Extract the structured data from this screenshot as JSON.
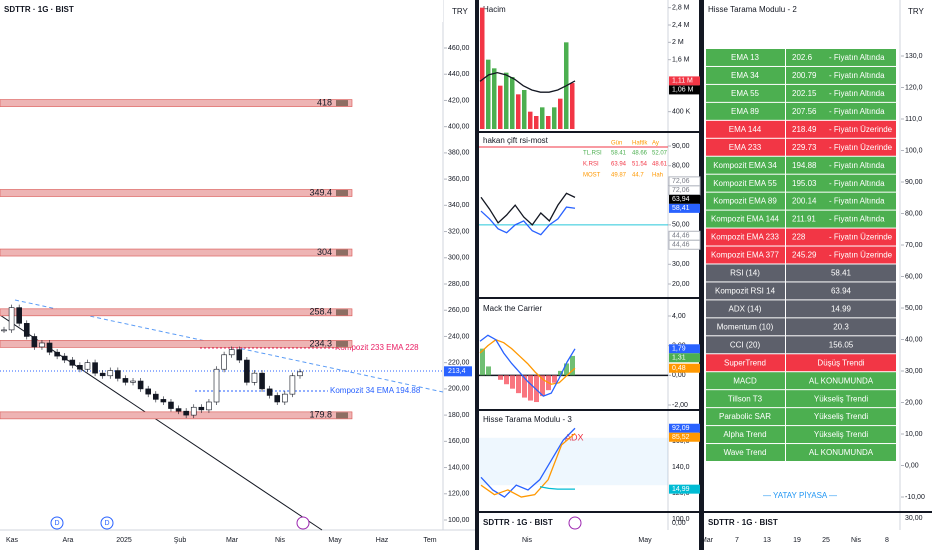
{
  "main": {
    "symbol": "SDTTR · 1G · BIST",
    "currency": "TRY",
    "ylim": [
      100,
      460
    ],
    "yticks": [
      {
        "value": 460,
        "label": "460,00"
      },
      {
        "value": 440,
        "label": "440,00"
      },
      {
        "value": 420,
        "label": "420,00"
      },
      {
        "value": 400,
        "label": "400,00"
      },
      {
        "value": 380,
        "label": "380,00"
      },
      {
        "value": 360,
        "label": "360,00"
      },
      {
        "value": 340,
        "label": "340,00"
      },
      {
        "value": 320,
        "label": "320,00"
      },
      {
        "value": 300,
        "label": "300,00"
      },
      {
        "value": 280,
        "label": "280,00"
      },
      {
        "value": 260,
        "label": "260,00"
      },
      {
        "value": 240,
        "label": "240,00"
      },
      {
        "value": 220,
        "label": "220,00"
      },
      {
        "value": 200,
        "label": "200,00"
      },
      {
        "value": 180,
        "label": "180,00"
      },
      {
        "value": 160,
        "label": "160,00"
      },
      {
        "value": 140,
        "label": "140,00"
      },
      {
        "value": 120,
        "label": "120,00"
      },
      {
        "value": 100,
        "label": "100,00"
      }
    ],
    "levels": [
      418,
      349.4,
      304,
      258.4,
      234.3,
      179.8
    ],
    "ema_labels": [
      "Kompozit 233 EMA 228",
      "Kompozit 34 EMA 194.88"
    ],
    "last_price": {
      "value": 213.4,
      "label": "213,4"
    },
    "closes": [
      245,
      262,
      250,
      240,
      232,
      235,
      228,
      225,
      222,
      218,
      215,
      220,
      212,
      210,
      214,
      208,
      205,
      206,
      200,
      196,
      192,
      190,
      185,
      183,
      180,
      186,
      184,
      190,
      215,
      226,
      230,
      222,
      205,
      212,
      200,
      195,
      190,
      196,
      210,
      213
    ],
    "months": [
      "Kas",
      "Ara",
      "2025",
      "Şub",
      "Mar",
      "Nis",
      "May",
      "Haz",
      "Tem"
    ],
    "markers": [
      "D",
      "D"
    ]
  },
  "volume": {
    "title": "Hacim",
    "ylim": [
      0,
      3
    ],
    "yticks": [
      {
        "value": 2.8,
        "label": "2,8 M"
      },
      {
        "value": 2.4,
        "label": "2,4 M"
      },
      {
        "value": 2,
        "label": "2 M"
      },
      {
        "value": 1.6,
        "label": "1,6 M"
      },
      {
        "value": 0.4,
        "label": "400 K"
      }
    ],
    "badges": [
      {
        "value": 1.11,
        "label": "1,11 M",
        "color": "#f23645"
      },
      {
        "value": 1.06,
        "label": "1,06 M",
        "color": "#000000"
      }
    ],
    "values": [
      2.8,
      1.6,
      1.4,
      1.0,
      1.3,
      1.2,
      0.8,
      0.9,
      0.4,
      0.3,
      0.5,
      0.3,
      0.5,
      0.7,
      2.0,
      1.06
    ],
    "colors": [
      "#f23645",
      "#4caf50",
      "#4caf50",
      "#f23645",
      "#4caf50",
      "#4caf50",
      "#f23645",
      "#4caf50",
      "#f23645",
      "#f23645",
      "#4caf50",
      "#f23645",
      "#4caf50",
      "#f23645",
      "#4caf50",
      "#f23645"
    ],
    "ma": [
      1.1,
      1.25,
      1.3,
      1.25,
      1.15,
      1.0,
      0.9,
      0.85,
      0.85,
      0.9,
      1.0,
      1.11
    ]
  },
  "rsi": {
    "title": "hakan çift rsi-most",
    "ylim": [
      20,
      90
    ],
    "yticks": [
      {
        "value": 90,
        "label": "90,00"
      },
      {
        "value": 80,
        "label": "80,00"
      },
      {
        "value": 70,
        "label": "70,00"
      },
      {
        "value": 50,
        "label": "50,00"
      },
      {
        "value": 30,
        "label": "30,00"
      },
      {
        "value": 20,
        "label": "20,00"
      }
    ],
    "badges": [
      {
        "value": 72.06,
        "label": "72,06",
        "color": "#ffffff"
      },
      {
        "value": 72.06,
        "label": "72,06",
        "color": "#ffffff"
      },
      {
        "value": 63.94,
        "label": "63,94",
        "color": "#000000"
      },
      {
        "value": 58.41,
        "label": "58,41",
        "color": "#2962ff"
      },
      {
        "value": 44.46,
        "label": "44,46",
        "color": "#ffffff"
      },
      {
        "value": 44.46,
        "label": "44,46",
        "color": "#ffffff"
      }
    ],
    "table": {
      "header": [
        "Gün",
        "Haftlk",
        "Ay"
      ],
      "rows": [
        [
          "TL.RSI",
          58.41,
          48.66,
          52.07
        ],
        [
          "K.RSI",
          63.94,
          51.54,
          48.61
        ],
        [
          "MOST",
          49.87,
          44.7,
          "Hah"
        ]
      ]
    },
    "k_rsi": [
      64,
      58,
      51,
      55,
      60,
      54,
      50,
      56,
      52,
      60,
      66,
      63.94
    ],
    "tl_rsi": [
      57,
      53,
      48,
      46,
      50,
      52,
      47,
      45,
      50,
      53,
      59,
      58.41
    ]
  },
  "mack": {
    "title": "Mack the Carrier",
    "ylim": [
      -2,
      4
    ],
    "yticks": [
      {
        "value": 4,
        "label": "4,00"
      },
      {
        "value": 2,
        "label": "2,00"
      },
      {
        "value": 0,
        "label": "0,00"
      },
      {
        "value": -2,
        "label": "-2,00"
      }
    ],
    "badges": [
      {
        "value": 1.79,
        "label": "1,79",
        "color": "#2962ff"
      },
      {
        "value": 1.31,
        "label": "1,31",
        "color": "#4caf50"
      },
      {
        "value": 0.48,
        "label": "0,48",
        "color": "#ff9800"
      }
    ],
    "histogram": [
      1.8,
      0.6,
      0,
      -0.3,
      -0.6,
      -0.9,
      -1.2,
      -1.5,
      -1.7,
      -1.8,
      -1.4,
      -1.0,
      -0.5,
      0.3,
      0.8,
      1.31
    ],
    "slow": [
      1.5,
      2.0,
      2.4,
      2.2,
      1.8,
      1.3,
      0.8,
      0.2,
      -0.3,
      -0.6,
      -0.5,
      0,
      0.48
    ],
    "fast": [
      2.3,
      2.7,
      2.4,
      1.5,
      0.8,
      0.2,
      -0.4,
      -0.9,
      -1.4,
      -1.2,
      -0.2,
      0.9,
      1.79
    ]
  },
  "hisse3": {
    "title": "Hisse Tarama Modulu - 3",
    "label": "ADX",
    "ylim": [
      0,
      100
    ],
    "axis": [
      "160,0",
      "140,0",
      "120,0",
      "100,0"
    ],
    "badges": [
      {
        "value": 92.09,
        "label": "92,09",
        "color": "#2962ff"
      },
      {
        "value": 85.52,
        "label": "85,52",
        "color": "#ff9800"
      },
      {
        "value": 14.99,
        "label": "14,99",
        "color": "#00bcd4"
      }
    ],
    "blue": [
      30,
      14,
      5,
      20,
      14,
      27,
      52,
      77,
      92.09
    ],
    "orange": [
      20,
      8,
      14,
      5,
      8,
      27,
      71,
      85.52
    ],
    "adx": [
      18,
      16,
      15,
      15,
      14.99
    ]
  },
  "mid_bottom": {
    "symbol": "SDTTR · 1G · BIST",
    "axis": "0,00",
    "months": [
      "Nis",
      "May"
    ]
  },
  "right": {
    "title": "Hisse Tarama Modulu - 2",
    "currency": "TRY",
    "ylim": [
      -10,
      130
    ],
    "yticks": [
      {
        "value": 130,
        "label": "130,0"
      },
      {
        "value": 120,
        "label": "120,0"
      },
      {
        "value": 110,
        "label": "110,0"
      },
      {
        "value": 100,
        "label": "100,0"
      },
      {
        "value": 90,
        "label": "90,00"
      },
      {
        "value": 80,
        "label": "80,00"
      },
      {
        "value": 70,
        "label": "70,00"
      },
      {
        "value": 60,
        "label": "60,00"
      },
      {
        "value": 50,
        "label": "50,00"
      },
      {
        "value": 40,
        "label": "40,00"
      },
      {
        "value": 30,
        "label": "30,00"
      },
      {
        "value": 20,
        "label": "20,00"
      },
      {
        "value": 10,
        "label": "10,00"
      },
      {
        "value": 0,
        "label": "0,00"
      },
      {
        "value": -10,
        "label": "-10,00"
      }
    ],
    "rows": [
      {
        "name": "EMA 13",
        "value": 202.6,
        "status": "- Fiyatın Altında",
        "color": "#4caf50"
      },
      {
        "name": "EMA 34",
        "value": 200.79,
        "status": "- Fiyatın Altında",
        "color": "#4caf50"
      },
      {
        "name": "EMA 55",
        "value": 202.15,
        "status": "- Fiyatın Altında",
        "color": "#4caf50"
      },
      {
        "name": "EMA 89",
        "value": 207.56,
        "status": "- Fiyatın Altında",
        "color": "#4caf50"
      },
      {
        "name": "EMA 144",
        "value": 218.49,
        "status": "- Fiyatın Üzerinde",
        "color": "#f23645"
      },
      {
        "name": "EMA 233",
        "value": 229.73,
        "status": "- Fiyatın Üzerinde",
        "color": "#f23645"
      },
      {
        "name": "Kompozit EMA 34",
        "value": 194.88,
        "status": "- Fiyatın Altında",
        "color": "#4caf50"
      },
      {
        "name": "Kompozit EMA 55",
        "value": 195.03,
        "status": "- Fiyatın Altında",
        "color": "#4caf50"
      },
      {
        "name": "Kompozit EMA 89",
        "value": 200.14,
        "status": "- Fiyatın Altında",
        "color": "#4caf50"
      },
      {
        "name": "Kompozit EMA 144",
        "value": 211.91,
        "status": "- Fiyatın Altında",
        "color": "#4caf50"
      },
      {
        "name": "Kompozit EMA 233",
        "value": 228,
        "status": "- Fiyatın Üzerinde",
        "color": "#f23645"
      },
      {
        "name": "Kompozit EMA 377",
        "value": 245.29,
        "status": "- Fiyatın Üzerinde",
        "color": "#f23645"
      },
      {
        "name": "RSI (14)",
        "value": 58.41,
        "color": "#5d606b"
      },
      {
        "name": "Kompozit RSI 14",
        "value": 63.94,
        "color": "#5d606b"
      },
      {
        "name": "ADX (14)",
        "value": 14.99,
        "color": "#5d606b"
      },
      {
        "name": "Momentum (10)",
        "value": 20.3,
        "color": "#5d606b"
      },
      {
        "name": "CCI (20)",
        "value": 156.05,
        "color": "#5d606b"
      },
      {
        "name": "SuperTrend",
        "status": "Düşüş Trendi",
        "color": "#f23645"
      },
      {
        "name": "MACD",
        "status": "AL KONUMUNDA",
        "color": "#4caf50"
      },
      {
        "name": "Tillson T3",
        "status": "Yükseliş Trendi",
        "color": "#4caf50"
      },
      {
        "name": "Parabolic SAR",
        "status": "Yükseliş Trendi",
        "color": "#4caf50"
      },
      {
        "name": "Alpha Trend",
        "status": "Yükseliş Trendi",
        "color": "#4caf50"
      },
      {
        "name": "Wave Trend",
        "status": "AL KONUMUNDA",
        "color": "#4caf50"
      }
    ],
    "footer": "— YATAY PİYASA —",
    "bottom_symbol": "SDTTR · 1G · BIST",
    "bottom_axis": "30,00",
    "dates": [
      "Mar",
      "7",
      "13",
      "19",
      "25",
      "Nis",
      "8"
    ]
  }
}
